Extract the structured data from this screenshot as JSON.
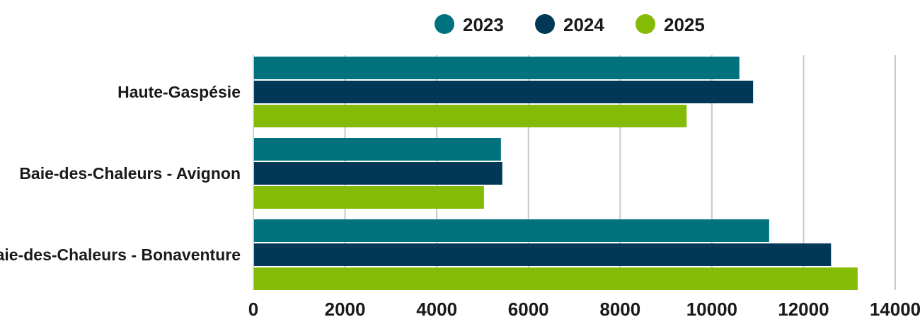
{
  "chart_data": {
    "type": "bar",
    "orientation": "horizontal",
    "title": "",
    "xlabel": "",
    "ylabel": "",
    "categories": [
      "Haute-Gaspésie",
      "Baie-des-Chaleurs - Avignon",
      "Baie-des-Chaleurs - Bonaventure"
    ],
    "series": [
      {
        "name": "2023",
        "color": "#00727d",
        "values": [
          10600,
          5400,
          11250
        ]
      },
      {
        "name": "2024",
        "color": "#023857",
        "values": [
          10900,
          5430,
          12600
        ]
      },
      {
        "name": "2025",
        "color": "#84bb06",
        "values": [
          9450,
          5030,
          13180
        ]
      }
    ],
    "xlim": [
      0,
      14000
    ],
    "x_ticks": [
      0,
      2000,
      4000,
      6000,
      8000,
      10000,
      12000,
      14000
    ],
    "x_tick_labels": [
      "0",
      "2000",
      "4000",
      "6000",
      "8000",
      "10000",
      "12000",
      "14000"
    ],
    "grid": true,
    "legend_position": "top-center"
  }
}
